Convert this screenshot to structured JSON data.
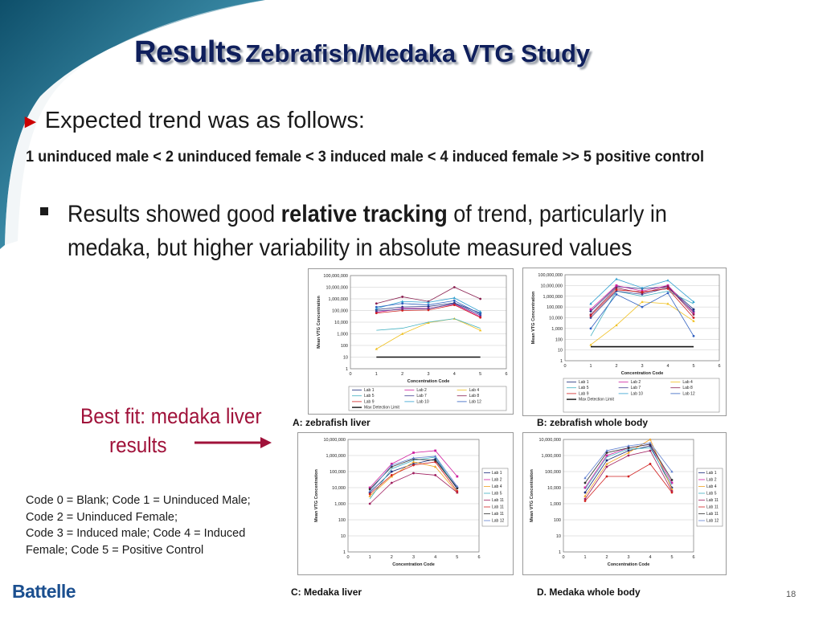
{
  "title": {
    "main": "Results",
    "sub": "Zebrafish/Medaka VTG Study"
  },
  "bullet1": {
    "text": "Expected trend was as follows:"
  },
  "trend": {
    "text": "1 uninduced male < 2 uninduced female < 3 induced male < 4 induced female >> 5 positive control"
  },
  "bullet2": {
    "pre": "Results showed good ",
    "bold": "relative tracking",
    "post": " of trend, particularly in medaka, but higher variability in absolute measured values"
  },
  "best_fit": {
    "line1": "Best fit: medaka liver",
    "line2": "results"
  },
  "codes": {
    "line1": "Code 0 = Blank; Code 1 = Uninduced Male;",
    "line2": "Code 2 = Uninduced Female;",
    "line3": "Code 3 = Induced male; Code 4 = Induced",
    "line4": "Female;  Code 5 = Positive Control"
  },
  "captions": {
    "a": "A:  zebrafish liver",
    "b": "B: zebrafish whole body",
    "c": "C: Medaka liver",
    "d": "D. Medaka whole body"
  },
  "logo": "Battelle",
  "page_number": "18",
  "chart_data": [
    {
      "id": "A",
      "type": "line",
      "yscale": "log",
      "ylim": [
        1,
        100000000
      ],
      "xlim": [
        0,
        6
      ],
      "x_ticks": [
        "0",
        "1",
        "2",
        "3",
        "4",
        "5",
        "6"
      ],
      "y_ticks": [
        "1",
        "10",
        "100",
        "1,000",
        "10,000",
        "100,000",
        "1,000,000",
        "10,000,000",
        "100,000,000"
      ],
      "xlabel": "Concentration Code",
      "ylabel": "Mean VTG Concentration",
      "legend_position": "bottom",
      "x": [
        1,
        2,
        3,
        4,
        5
      ],
      "series": [
        {
          "name": "Lab 1",
          "color": "#1a2a7a",
          "values": [
            120000,
            200000,
            220000,
            450000,
            60000
          ]
        },
        {
          "name": "Lab 2",
          "color": "#d020a0",
          "values": [
            70000,
            150000,
            150000,
            350000,
            30000
          ]
        },
        {
          "name": "Lab 4",
          "color": "#f0c020",
          "values": [
            50,
            1000,
            9000,
            20000,
            2000
          ]
        },
        {
          "name": "Lab 5",
          "color": "#40b0c0",
          "values": [
            2000,
            3000,
            10000,
            20000,
            3000
          ]
        },
        {
          "name": "Lab 7",
          "color": "#404090",
          "values": [
            90000,
            130000,
            140000,
            400000,
            40000
          ]
        },
        {
          "name": "Lab 8",
          "color": "#8a2050",
          "values": [
            400000,
            1500000,
            600000,
            10000000,
            1000000
          ]
        },
        {
          "name": "Lab 9",
          "color": "#d02020",
          "values": [
            60000,
            100000,
            110000,
            300000,
            25000
          ]
        },
        {
          "name": "Lab 10",
          "color": "#30a0d0",
          "values": [
            150000,
            600000,
            500000,
            1200000,
            80000
          ]
        },
        {
          "name": "Lab 12",
          "color": "#3060c0",
          "values": [
            200000,
            400000,
            300000,
            700000,
            50000
          ]
        },
        {
          "name": "Max Detection Limit",
          "color": "#111111",
          "dash": false,
          "values": [
            10,
            10,
            10,
            10,
            10
          ]
        }
      ]
    },
    {
      "id": "B",
      "type": "line",
      "yscale": "log",
      "ylim": [
        1,
        100000000
      ],
      "xlim": [
        0,
        6
      ],
      "x_ticks": [
        "0",
        "1",
        "2",
        "3",
        "4",
        "5",
        "6"
      ],
      "y_ticks": [
        "1",
        "10",
        "100",
        "1,000",
        "10,000",
        "100,000",
        "1,000,000",
        "10,000,000",
        "100,000,000"
      ],
      "xlabel": "Concentration Code",
      "ylabel": "Mean VTG Concentration",
      "legend_position": "bottom",
      "x": [
        1,
        2,
        3,
        4,
        5
      ],
      "series": [
        {
          "name": "Lab 1",
          "color": "#1a2a7a",
          "values": [
            40000,
            8000000,
            5000000,
            8000000,
            60000
          ]
        },
        {
          "name": "Lab 2",
          "color": "#d020a0",
          "values": [
            60000,
            10000000,
            3000000,
            10000000,
            30000
          ]
        },
        {
          "name": "Lab 4",
          "color": "#f0c020",
          "values": [
            30,
            2000,
            300000,
            200000,
            5000
          ]
        },
        {
          "name": "Lab 5",
          "color": "#40b0c0",
          "values": [
            200,
            3000000,
            1000000,
            3000000,
            200000
          ]
        },
        {
          "name": "Lab 7",
          "color": "#404090",
          "values": [
            10000,
            3000000,
            1500000,
            6000000,
            40000
          ]
        },
        {
          "name": "Lab 8",
          "color": "#8a2050",
          "values": [
            20000,
            6000000,
            2000000,
            8000000,
            20000
          ]
        },
        {
          "name": "Lab 9",
          "color": "#d02020",
          "values": [
            15000,
            4000000,
            2500000,
            5000000,
            10000
          ]
        },
        {
          "name": "Lab 10",
          "color": "#30a0d0",
          "values": [
            200000,
            40000000,
            6000000,
            30000000,
            300000
          ]
        },
        {
          "name": "Lab 12",
          "color": "#3060c0",
          "values": [
            1000,
            1500000,
            100000,
            2000000,
            200
          ]
        },
        {
          "name": "Max Detection Limit",
          "color": "#111111",
          "values": [
            20,
            20,
            20,
            20,
            20
          ]
        }
      ]
    },
    {
      "id": "C",
      "type": "line",
      "yscale": "log",
      "ylim": [
        1,
        10000000
      ],
      "xlim": [
        0,
        6
      ],
      "x_ticks": [
        "0",
        "1",
        "2",
        "3",
        "4",
        "5",
        "6"
      ],
      "y_ticks": [
        "1",
        "10",
        "100",
        "1,000",
        "10,000",
        "100,000",
        "1,000,000",
        "10,000,000"
      ],
      "xlabel": "Concentration Code",
      "ylabel": "Mean VTG Concentration",
      "legend_position": "right",
      "x": [
        1,
        2,
        3,
        4,
        5
      ],
      "series": [
        {
          "name": "Lab 1",
          "color": "#1a2a7a",
          "values": [
            5000,
            100000,
            300000,
            600000,
            10000
          ]
        },
        {
          "name": "Lab 2",
          "color": "#d020a0",
          "values": [
            10000,
            300000,
            1500000,
            2000000,
            50000
          ]
        },
        {
          "name": "Lab 4",
          "color": "#f0a020",
          "values": [
            3000,
            50000,
            400000,
            200000,
            5000
          ]
        },
        {
          "name": "Lab 5",
          "color": "#40b0c0",
          "values": [
            2000,
            150000,
            500000,
            800000,
            8000
          ]
        },
        {
          "name": "Lab 11",
          "color": "#a02060",
          "values": [
            1000,
            20000,
            80000,
            60000,
            5000
          ]
        },
        {
          "name": "Lab 11",
          "color": "#d02020",
          "values": [
            4000,
            60000,
            250000,
            400000,
            6000
          ]
        },
        {
          "name": "Lab 11",
          "color": "#303030",
          "values": [
            8000,
            200000,
            600000,
            500000,
            9000
          ]
        },
        {
          "name": "Lab 12",
          "color": "#6080d0",
          "values": [
            6000,
            250000,
            700000,
            900000,
            12000
          ]
        }
      ]
    },
    {
      "id": "D",
      "type": "line",
      "yscale": "log",
      "ylim": [
        1,
        10000000
      ],
      "xlim": [
        0,
        6
      ],
      "x_ticks": [
        "0",
        "1",
        "2",
        "3",
        "4",
        "5",
        "6"
      ],
      "y_ticks": [
        "1",
        "10",
        "100",
        "1,000",
        "10,000",
        "100,000",
        "1,000,000",
        "10,000,000"
      ],
      "xlabel": "Concentration Code",
      "ylabel": "Mean VTG Concentration",
      "legend_position": "right",
      "x": [
        1,
        2,
        3,
        4,
        5
      ],
      "series": [
        {
          "name": "Lab 1",
          "color": "#1a2a7a",
          "values": [
            5000,
            500000,
            2000000,
            4000000,
            10000
          ]
        },
        {
          "name": "Lab 2",
          "color": "#d020a0",
          "values": [
            10000,
            1000000,
            3000000,
            5000000,
            20000
          ]
        },
        {
          "name": "Lab 4",
          "color": "#f0a020",
          "values": [
            3000,
            300000,
            1500000,
            10000000,
            8000
          ]
        },
        {
          "name": "Lab 5",
          "color": "#40b0c0",
          "values": [
            8000,
            800000,
            2500000,
            3000000,
            15000
          ]
        },
        {
          "name": "Lab 11",
          "color": "#a02060",
          "values": [
            2000,
            200000,
            1000000,
            2000000,
            6000
          ]
        },
        {
          "name": "Lab 11",
          "color": "#d02020",
          "values": [
            1500,
            50000,
            50000,
            300000,
            5000
          ]
        },
        {
          "name": "Lab 11",
          "color": "#303030",
          "values": [
            20000,
            1500000,
            3000000,
            5000000,
            30000
          ]
        },
        {
          "name": "Lab 12",
          "color": "#6080d0",
          "values": [
            40000,
            2000000,
            4000000,
            6000000,
            100000
          ]
        }
      ]
    }
  ]
}
